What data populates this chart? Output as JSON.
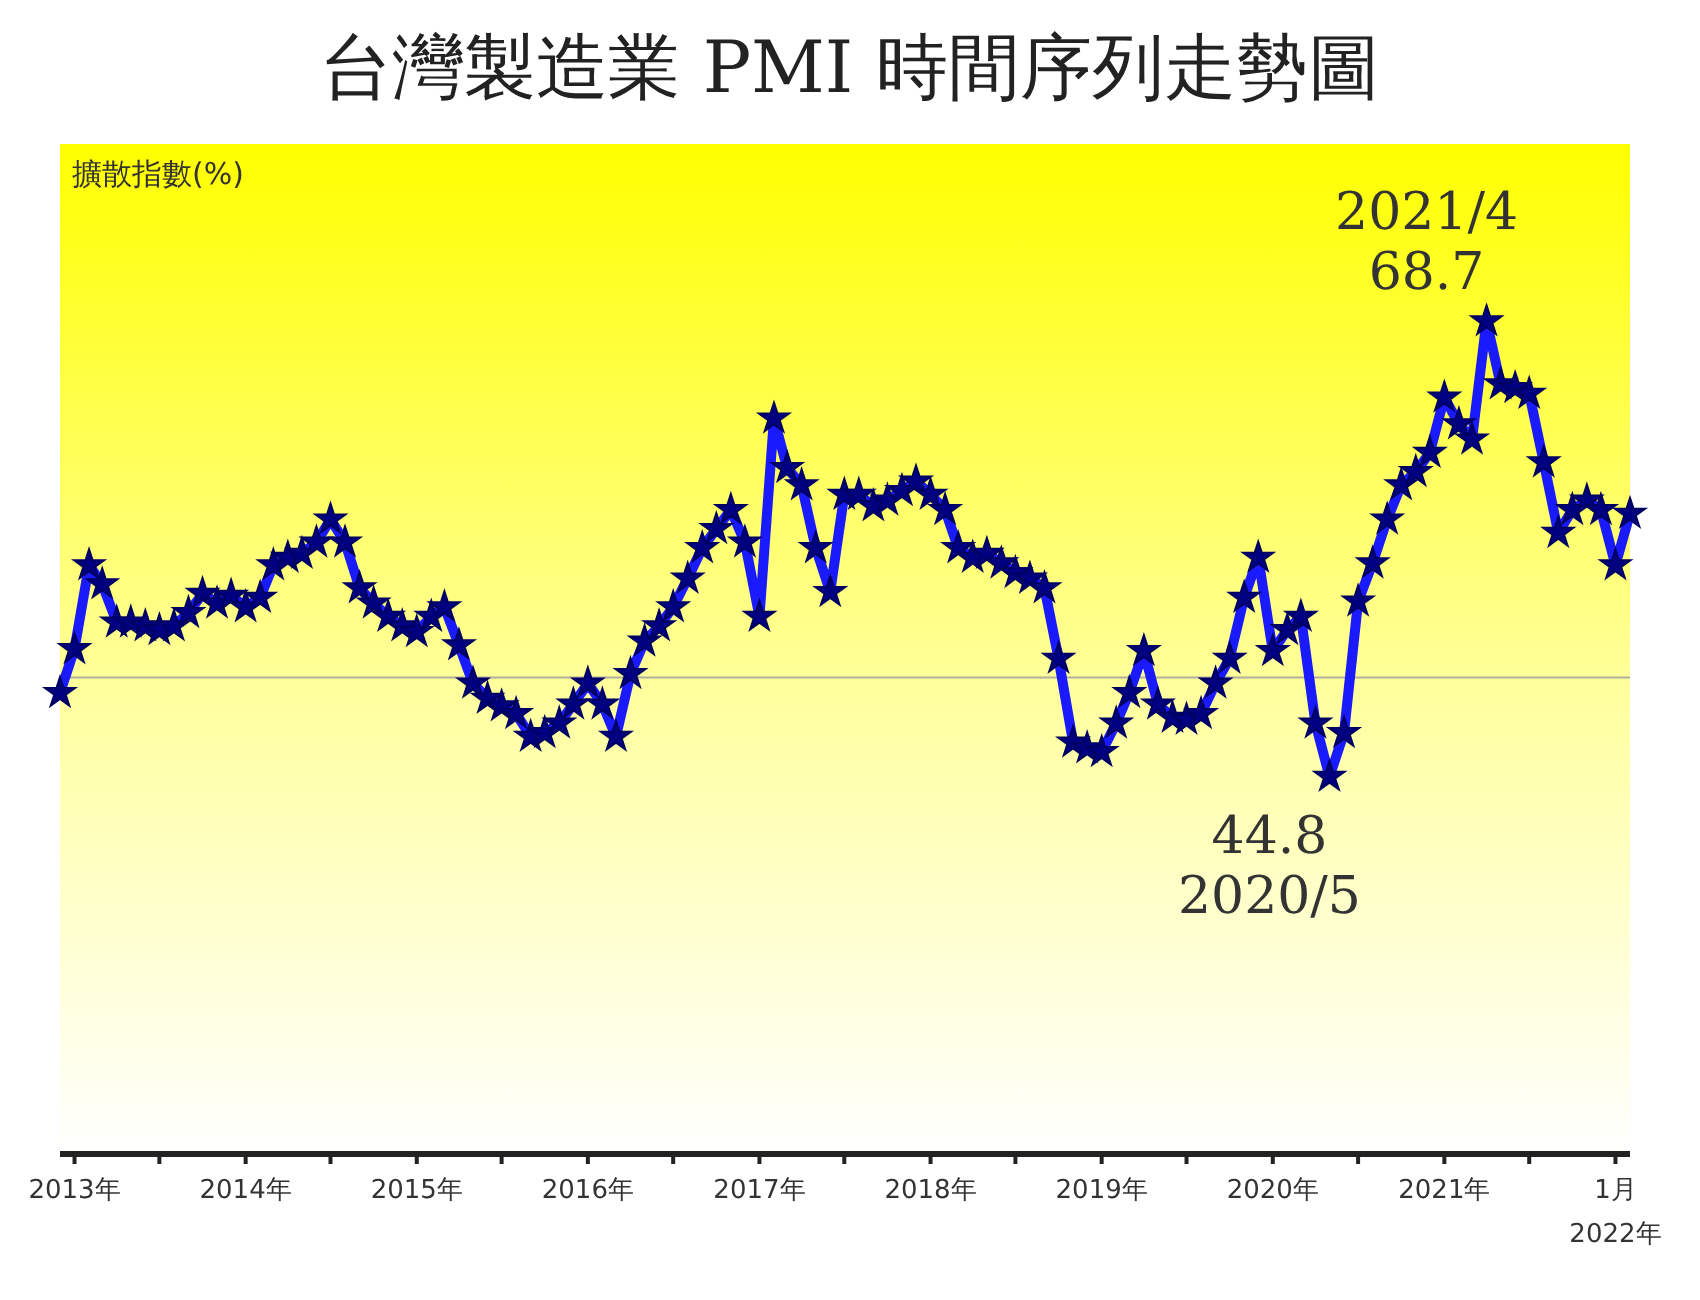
{
  "chart_data": {
    "type": "line",
    "title": "台灣製造業 PMI 時間序列走勢圖",
    "ylabel": "擴散指數(%)",
    "x": [
      "2012-12",
      "2013-01",
      "2013-02",
      "2013-03",
      "2013-04",
      "2013-05",
      "2013-06",
      "2013-07",
      "2013-08",
      "2013-09",
      "2013-10",
      "2013-11",
      "2013-12",
      "2014-01",
      "2014-02",
      "2014-03",
      "2014-04",
      "2014-05",
      "2014-06",
      "2014-07",
      "2014-08",
      "2014-09",
      "2014-10",
      "2014-11",
      "2014-12",
      "2015-01",
      "2015-02",
      "2015-03",
      "2015-04",
      "2015-05",
      "2015-06",
      "2015-07",
      "2015-08",
      "2015-09",
      "2015-10",
      "2015-11",
      "2015-12",
      "2016-01",
      "2016-02",
      "2016-03",
      "2016-04",
      "2016-05",
      "2016-06",
      "2016-07",
      "2016-08",
      "2016-09",
      "2016-10",
      "2016-11",
      "2016-12",
      "2017-01",
      "2017-02",
      "2017-03",
      "2017-04",
      "2017-05",
      "2017-06",
      "2017-07",
      "2017-08",
      "2017-09",
      "2017-10",
      "2017-11",
      "2017-12",
      "2018-01",
      "2018-02",
      "2018-03",
      "2018-04",
      "2018-05",
      "2018-06",
      "2018-07",
      "2018-08",
      "2018-09",
      "2018-10",
      "2018-11",
      "2018-12",
      "2019-01",
      "2019-02",
      "2019-03",
      "2019-04",
      "2019-05",
      "2019-06",
      "2019-07",
      "2019-08",
      "2019-09",
      "2019-10",
      "2019-11",
      "2019-12",
      "2020-01",
      "2020-02",
      "2020-03",
      "2020-04",
      "2020-05",
      "2020-06",
      "2020-07",
      "2020-08",
      "2020-09",
      "2020-10",
      "2020-11",
      "2020-12",
      "2021-01",
      "2021-02",
      "2021-03",
      "2021-04",
      "2021-05",
      "2021-06",
      "2021-07",
      "2021-08",
      "2021-09",
      "2021-10",
      "2021-11",
      "2021-12",
      "2022-01",
      "2022-02"
    ],
    "series": [
      {
        "color": "#1a1aff",
        "values": [
          49.2,
          51.5,
          55.9,
          54.9,
          52.9,
          52.9,
          52.7,
          52.5,
          52.7,
          53.4,
          54.4,
          53.9,
          54.3,
          53.7,
          54.2,
          55.9,
          56.3,
          56.5,
          57.1,
          58.3,
          57.1,
          54.7,
          53.9,
          53.2,
          52.7,
          52.4,
          53.2,
          53.7,
          51.7,
          49.7,
          48.9,
          48.5,
          48.1,
          46.9,
          47.1,
          47.6,
          48.6,
          49.7,
          48.6,
          46.9,
          50.2,
          51.9,
          52.7,
          53.7,
          55.2,
          56.8,
          57.8,
          58.8,
          57.1,
          53.2,
          63.6,
          61.0,
          60.1,
          56.8,
          54.5,
          59.6,
          59.6,
          59.0,
          59.3,
          59.8,
          60.3,
          59.6,
          58.8,
          56.8,
          56.3,
          56.5,
          56.0,
          55.5,
          55.2,
          54.7,
          51.0,
          46.6,
          46.3,
          46.1,
          47.6,
          49.2,
          51.4,
          48.6,
          47.9,
          47.8,
          48.1,
          49.7,
          51.0,
          54.2,
          56.3,
          51.4,
          52.5,
          53.2,
          47.6,
          44.8,
          47.1,
          54.0,
          56.0,
          58.3,
          60.1,
          60.8,
          61.8,
          64.7,
          63.3,
          62.5,
          68.7,
          65.4,
          65.2,
          64.9,
          61.3,
          57.6,
          58.8,
          59.3,
          58.8,
          55.9,
          58.6
        ],
        "value_labels": [
          null,
          null,
          null,
          null,
          null,
          null,
          null,
          null,
          null,
          null,
          null,
          null,
          null,
          null,
          null,
          null,
          null,
          null,
          null,
          null,
          null,
          null,
          null,
          null,
          null,
          null,
          null,
          null,
          null,
          null,
          null,
          null,
          null,
          null,
          null,
          null,
          null,
          null,
          null,
          null,
          null,
          null,
          null,
          null,
          null,
          null,
          null,
          null,
          null,
          null,
          null,
          null,
          null,
          null,
          null,
          null,
          null,
          null,
          null,
          null,
          null,
          null,
          null,
          null,
          null,
          null,
          null,
          null,
          null,
          null,
          null,
          null,
          null,
          null,
          null,
          null,
          null,
          null,
          null,
          null,
          null,
          null,
          null,
          null,
          null,
          null,
          null,
          null,
          null,
          "44.8",
          null,
          null,
          null,
          null,
          null,
          null,
          null,
          null,
          null,
          null,
          "68.7",
          null,
          null,
          null,
          null,
          null,
          null,
          null,
          null,
          null,
          null
        ]
      }
    ],
    "xlim": [
      "2012-12",
      "2022-02"
    ],
    "ylim": [
      25,
      78
    ],
    "xticks": [
      {
        "value": "2013-01",
        "label": "2013年"
      },
      {
        "value": "2013-07",
        "label": null
      },
      {
        "value": "2014-01",
        "label": "2014年"
      },
      {
        "value": "2014-07",
        "label": null
      },
      {
        "value": "2015-01",
        "label": "2015年"
      },
      {
        "value": "2015-07",
        "label": null
      },
      {
        "value": "2016-01",
        "label": "2016年"
      },
      {
        "value": "2016-07",
        "label": null
      },
      {
        "value": "2017-01",
        "label": "2017年"
      },
      {
        "value": "2017-07",
        "label": null
      },
      {
        "value": "2018-01",
        "label": "2018年"
      },
      {
        "value": "2018-07",
        "label": null
      },
      {
        "value": "2019-01",
        "label": "2019年"
      },
      {
        "value": "2019-07",
        "label": null
      },
      {
        "value": "2020-01",
        "label": "2020年"
      },
      {
        "value": "2020-07",
        "label": null
      },
      {
        "value": "2021-01",
        "label": "2021年"
      },
      {
        "value": "2021-07",
        "label": null
      },
      {
        "value": "2022-01",
        "label": "1月\n2022年"
      }
    ],
    "tick_labels": "x",
    "marker": "star",
    "line_style": "solid",
    "ref_lines": [
      {
        "axis": "y",
        "value": 50,
        "color": "#b0b0a0"
      }
    ],
    "annotations": [
      {
        "text": "2021/4",
        "x": "2021-04",
        "y": 68.7
      },
      {
        "text": "2020/5",
        "x": "2020-05",
        "y": 44.8
      }
    ]
  }
}
